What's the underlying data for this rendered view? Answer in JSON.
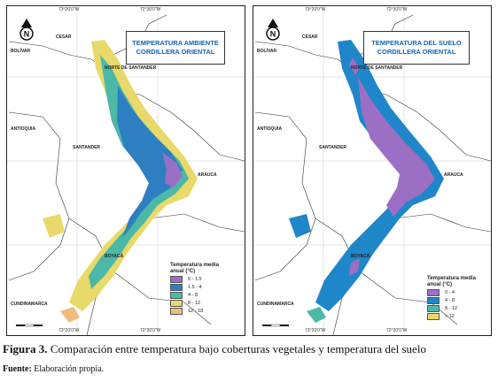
{
  "left_map": {
    "title_line1": "TEMPERATURA AMBIENTE",
    "title_line2": "CORDILLERA ORIENTAL",
    "coord_top_left": "73°20'0\"W",
    "coord_top_right": "72°30'0\"W",
    "coord_bottom_left": "73°20'0\"W",
    "coord_bottom_right": "72°30'0\"W",
    "regions": {
      "cesar": "CESAR",
      "bolivar": "BOLÍVAR",
      "norte_santander": "NORTE DE SANTANDER",
      "antioquia": "ANTIOQUIA",
      "santander": "SANTANDER",
      "arauca": "ARAUCA",
      "boyaca": "BOYACÁ",
      "cundinamarca": "CUNDINAMARCA"
    },
    "legend": {
      "title_line1": "Temperatura media",
      "title_line2": "anual (°C)",
      "items": [
        {
          "label": "0 - 1.5",
          "color": "#9b6fc4"
        },
        {
          "label": "1.5 - 4",
          "color": "#2d7fc1"
        },
        {
          "label": "4 - 8",
          "color": "#4bb8a8"
        },
        {
          "label": "8 - 12",
          "color": "#e8d96a"
        },
        {
          "label": "12 - 18",
          "color": "#efbd7c"
        }
      ]
    }
  },
  "right_map": {
    "title_line1": "TEMPERATURA DEL SUELO",
    "title_line2": "CORDILLERA ORIENTAL",
    "coord_top_left": "73°20'0\"W",
    "coord_top_right": "72°30'0\"W",
    "coord_bottom_left": "73°20'0\"W",
    "coord_bottom_right": "72°30'0\"W",
    "regions": {
      "cesar": "CESAR",
      "bolivar": "BOLÍVAR",
      "norte_santander": "NORTE DE SANTANDER",
      "antioquia": "ANTIOQUIA",
      "santander": "SANTANDER",
      "arauca": "ARAUCA",
      "boyaca": "BOYACÁ",
      "cundinamarca": "CUNDINAMARCA"
    },
    "legend": {
      "title_line1": "Temperatura media",
      "title_line2": "anual (°C)",
      "items": [
        {
          "label": "0 - 4",
          "color": "#9b6fc4"
        },
        {
          "label": "4 - 8",
          "color": "#1f86c9"
        },
        {
          "label": "8 - 12",
          "color": "#4bb8a8"
        },
        {
          "label": "> 12",
          "color": "#e8d96a"
        }
      ]
    }
  },
  "caption": {
    "label": "Figura 3.",
    "text": " Comparación entre temperatura bajo coberturas vegetales y temperatura del suelo"
  },
  "source": {
    "label": "Fuente:",
    "text": " Elaboración propia."
  }
}
